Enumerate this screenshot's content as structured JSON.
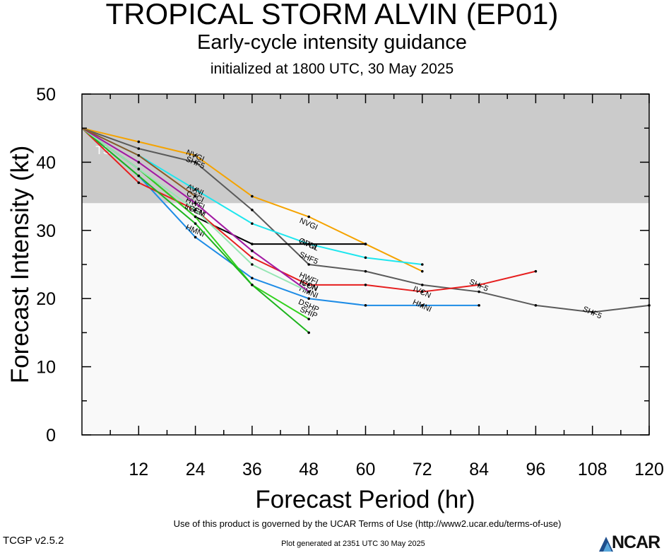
{
  "title": "TROPICAL STORM ALVIN (EP01)",
  "subtitle": "Early-cycle intensity guidance",
  "init_line": "initialized at 1800 UTC, 30 May 2025",
  "footer": {
    "terms": "Use of this product is governed by the UCAR Terms of Use (http://www2.ucar.edu/terms-of-use)",
    "generated": "Plot generated at 2351 UTC   30 May 2025",
    "version": "TCGP v2.5.2",
    "logo": "NCAR"
  },
  "chart_data": {
    "type": "line",
    "xlabel": "Forecast Period (hr)",
    "ylabel": "Forecast Intensity (kt)",
    "xlim": [
      0,
      120
    ],
    "ylim": [
      0,
      50
    ],
    "x_ticks": [
      12,
      24,
      36,
      48,
      60,
      72,
      84,
      96,
      108,
      120
    ],
    "y_ticks": [
      0,
      10,
      20,
      30,
      40,
      50
    ],
    "band": {
      "label": "TS",
      "from": 34,
      "to": 50,
      "color": "#cbcbcb"
    },
    "background": "#f9f9f9",
    "series": [
      {
        "name": "NVGI",
        "color": "#f5a300",
        "points": [
          [
            0,
            45
          ],
          [
            12,
            43
          ],
          [
            24,
            41
          ],
          [
            36,
            35
          ],
          [
            48,
            32
          ],
          [
            60,
            28
          ],
          [
            72,
            24
          ]
        ],
        "labels": [
          [
            24,
            41
          ],
          [
            48,
            31
          ]
        ]
      },
      {
        "name": "SHF5",
        "color": "#5a5a5a",
        "points": [
          [
            0,
            45
          ],
          [
            12,
            42
          ],
          [
            24,
            40
          ],
          [
            36,
            33
          ],
          [
            48,
            25
          ],
          [
            60,
            24
          ],
          [
            72,
            22
          ],
          [
            84,
            21
          ],
          [
            96,
            19
          ],
          [
            108,
            18
          ],
          [
            120,
            19
          ]
        ],
        "labels": [
          [
            24,
            40
          ],
          [
            48,
            26
          ],
          [
            84,
            22
          ],
          [
            108,
            18
          ]
        ]
      },
      {
        "name": "AVNI",
        "color": "#1ee6ee",
        "points": [
          [
            0,
            45
          ],
          [
            12,
            41
          ],
          [
            24,
            36
          ],
          [
            36,
            31
          ],
          [
            48,
            28
          ],
          [
            60,
            26
          ],
          [
            72,
            25
          ]
        ],
        "labels": [
          [
            24,
            36
          ],
          [
            48,
            28
          ]
        ]
      },
      {
        "name": "OFCL",
        "color": "#000000",
        "points": [
          [
            0,
            45
          ],
          [
            12,
            39
          ],
          [
            24,
            32
          ],
          [
            36,
            28
          ],
          [
            48,
            28
          ],
          [
            60,
            28
          ]
        ],
        "labels": [
          [
            48,
            28
          ]
        ]
      },
      {
        "name": "HMNI",
        "color": "#1e8ce6",
        "points": [
          [
            0,
            45
          ],
          [
            12,
            38
          ],
          [
            24,
            29
          ],
          [
            36,
            23
          ],
          [
            48,
            20
          ],
          [
            60,
            19
          ],
          [
            72,
            19
          ],
          [
            84,
            19
          ]
        ],
        "labels": [
          [
            24,
            30
          ],
          [
            48,
            21
          ],
          [
            72,
            19
          ]
        ]
      },
      {
        "name": "IVCN",
        "color": "#e61e1e",
        "points": [
          [
            0,
            45
          ],
          [
            12,
            37
          ],
          [
            24,
            33
          ],
          [
            36,
            26
          ],
          [
            48,
            22
          ],
          [
            60,
            22
          ],
          [
            72,
            21
          ],
          [
            84,
            22
          ],
          [
            96,
            24
          ]
        ],
        "labels": [
          [
            24,
            33
          ],
          [
            48,
            22
          ],
          [
            72,
            21
          ]
        ]
      },
      {
        "name": "HWFI",
        "color": "#e632e6",
        "points": [
          [
            0,
            45
          ],
          [
            12,
            40
          ],
          [
            24,
            34
          ],
          [
            36,
            27
          ],
          [
            48,
            21
          ]
        ],
        "labels": [
          [
            24,
            34
          ],
          [
            48,
            23
          ]
        ]
      },
      {
        "name": "DSHP",
        "color": "#32d21e",
        "points": [
          [
            0,
            45
          ],
          [
            12,
            39
          ],
          [
            24,
            32
          ],
          [
            36,
            22
          ],
          [
            48,
            17
          ]
        ],
        "labels": [
          [
            48,
            19
          ]
        ]
      },
      {
        "name": "SHIP",
        "color": "#1eb41e",
        "points": [
          [
            0,
            45
          ],
          [
            12,
            38
          ],
          [
            24,
            31
          ],
          [
            36,
            22
          ],
          [
            48,
            15
          ]
        ],
        "labels": [
          [
            48,
            18
          ]
        ]
      },
      {
        "name": "LGEM",
        "color": "#96e6b4",
        "points": [
          [
            0,
            45
          ],
          [
            12,
            39
          ],
          [
            24,
            33
          ],
          [
            36,
            25
          ],
          [
            48,
            21
          ]
        ],
        "labels": [
          [
            24,
            33
          ]
        ]
      },
      {
        "name": "ICON",
        "color": "#a01ea0",
        "points": [
          [
            0,
            45
          ],
          [
            12,
            40
          ],
          [
            24,
            34
          ],
          [
            36,
            27
          ],
          [
            48,
            21
          ]
        ],
        "labels": [
          [
            48,
            22
          ]
        ]
      },
      {
        "name": "CTCI",
        "color": "#8c5a28",
        "points": [
          [
            0,
            45
          ],
          [
            12,
            41
          ],
          [
            24,
            35
          ]
        ],
        "labels": [
          [
            24,
            35
          ]
        ]
      }
    ]
  }
}
